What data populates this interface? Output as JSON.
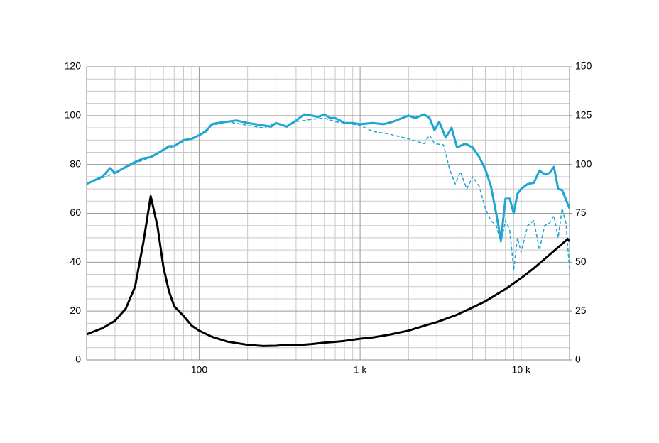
{
  "chart_data": {
    "type": "line",
    "xscale": "log",
    "grid": true,
    "xlim": [
      20,
      20000
    ],
    "xticks": [
      {
        "value": 100,
        "label": "100"
      },
      {
        "value": 1000,
        "label": "1 k"
      },
      {
        "value": 10000,
        "label": "10 k"
      }
    ],
    "xminor": [
      20,
      30,
      40,
      50,
      60,
      70,
      80,
      90,
      200,
      300,
      400,
      500,
      600,
      700,
      800,
      900,
      2000,
      3000,
      4000,
      5000,
      6000,
      7000,
      8000,
      9000,
      20000
    ],
    "ylim": [
      0,
      120
    ],
    "yticks": [
      0,
      20,
      40,
      60,
      80,
      100,
      120
    ],
    "yminor": [
      5,
      10,
      15,
      25,
      30,
      35,
      45,
      50,
      55,
      65,
      70,
      75,
      85,
      90,
      95,
      105,
      110,
      115
    ],
    "y2lim": [
      0,
      150
    ],
    "y2ticks": [
      0,
      25,
      50,
      75,
      100,
      125,
      150
    ],
    "series": [
      {
        "color": "#1ea5d2",
        "width": 3,
        "dash": false,
        "x": [
          20,
          25,
          28,
          30,
          35,
          40,
          45,
          50,
          55,
          60,
          65,
          70,
          80,
          90,
          100,
          110,
          120,
          130,
          150,
          170,
          200,
          250,
          280,
          300,
          350,
          400,
          450,
          500,
          550,
          600,
          650,
          700,
          750,
          800,
          900,
          1000,
          1200,
          1400,
          1600,
          2000,
          2200,
          2500,
          2700,
          2900,
          3100,
          3400,
          3700,
          4000,
          4500,
          5000,
          5500,
          6000,
          6500,
          7000,
          7500,
          8000,
          8500,
          9000,
          9500,
          10000,
          11000,
          12000,
          13000,
          14000,
          15000,
          16000,
          17000,
          18000,
          20000
        ],
        "values": [
          72,
          75,
          78.5,
          76.5,
          79,
          81,
          82.5,
          83,
          84.5,
          86,
          87.5,
          87.5,
          90,
          90.5,
          92,
          93.5,
          96.5,
          97,
          97.5,
          98,
          97,
          96,
          95.5,
          97,
          95.5,
          98,
          100.5,
          100,
          99.5,
          100.5,
          99,
          99,
          98,
          97,
          97,
          96.5,
          97,
          96.5,
          97.5,
          100,
          99,
          100.5,
          99,
          94,
          97.5,
          91,
          95,
          87,
          88.5,
          87,
          83,
          78,
          71,
          60,
          49,
          66,
          66,
          60,
          68,
          70,
          72,
          72.5,
          77.5,
          76,
          76.5,
          79,
          70,
          69.5,
          62
        ]
      },
      {
        "color": "#1ea5d2",
        "width": 1.5,
        "dash": true,
        "x": [
          20,
          30,
          40,
          50,
          60,
          70,
          80,
          100,
          120,
          150,
          200,
          250,
          300,
          350,
          400,
          500,
          600,
          700,
          800,
          1000,
          1200,
          1500,
          2000,
          2500,
          2700,
          2900,
          3300,
          3600,
          3900,
          4200,
          4600,
          5000,
          5500,
          6000,
          6500,
          7000,
          7500,
          8000,
          8500,
          9000,
          9500,
          10000,
          11000,
          12000,
          13000,
          14000,
          15000,
          16000,
          17000,
          18000,
          19000,
          20000
        ],
        "values": [
          72,
          76.5,
          80.5,
          83,
          86,
          87.5,
          89.5,
          92,
          96,
          97.5,
          96,
          95,
          97,
          95.5,
          97.5,
          98.5,
          99,
          97.5,
          97,
          96,
          93.5,
          92.5,
          90.5,
          88.5,
          92,
          88.5,
          88,
          78,
          72,
          77,
          70,
          75,
          71,
          62,
          57,
          55,
          48,
          57,
          53,
          37,
          50,
          44,
          55,
          57,
          45,
          55,
          56,
          59,
          50,
          62,
          56,
          37
        ]
      },
      {
        "color": "#000000",
        "width": 3,
        "dash": false,
        "x": [
          20,
          25,
          30,
          35,
          40,
          45,
          50,
          55,
          60,
          65,
          70,
          80,
          90,
          100,
          120,
          150,
          200,
          250,
          300,
          350,
          400,
          500,
          600,
          700,
          800,
          1000,
          1200,
          1500,
          2000,
          2500,
          3000,
          4000,
          5000,
          6000,
          8000,
          10000,
          12000,
          15000,
          18000,
          19500,
          20000
        ],
        "values": [
          10.5,
          13,
          16,
          21,
          30,
          48,
          67,
          55,
          38,
          28,
          22,
          18,
          14,
          12,
          9.5,
          7.5,
          6.2,
          5.7,
          5.8,
          6.2,
          6,
          6.5,
          7.1,
          7.4,
          7.8,
          8.7,
          9.2,
          10.3,
          12,
          14,
          15.5,
          18.5,
          21.5,
          24,
          29,
          33.5,
          37.5,
          43,
          47.5,
          49.5,
          48.5
        ]
      }
    ]
  }
}
